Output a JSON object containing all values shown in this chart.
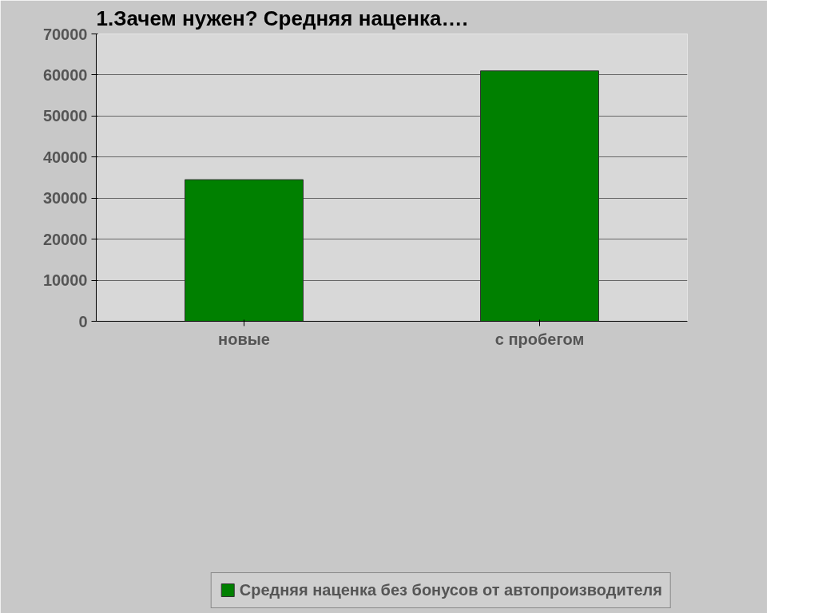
{
  "chart_data": {
    "type": "bar",
    "title": "1.Зачем нужен? Средняя наценка….",
    "categories": [
      "новые",
      "с пробегом"
    ],
    "series": [
      {
        "name": "Средняя наценка без бонусов от автопроизводителя",
        "color": "#008000",
        "values": [
          34500,
          61000
        ]
      }
    ],
    "ylim": [
      0,
      70000
    ],
    "yticks": [
      0,
      10000,
      20000,
      30000,
      40000,
      50000,
      60000,
      70000
    ],
    "grid": "y",
    "legend": "bottom"
  }
}
